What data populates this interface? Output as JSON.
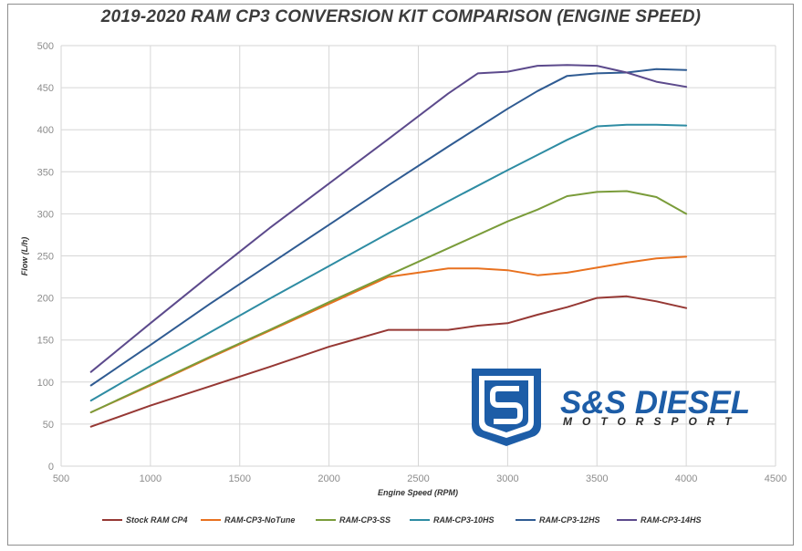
{
  "chart_data": {
    "type": "line",
    "title": "2019-2020 RAM CP3 CONVERSION KIT COMPARISON (ENGINE SPEED)",
    "xlabel": "Engine Speed (RPM)",
    "ylabel": "Flow (L/h)",
    "xlim": [
      500,
      4500
    ],
    "ylim": [
      0,
      500
    ],
    "xticks": [
      500,
      1000,
      1500,
      2000,
      2500,
      3000,
      3500,
      4000,
      4500
    ],
    "yticks": [
      0,
      50,
      100,
      150,
      200,
      250,
      300,
      350,
      400,
      450,
      500
    ],
    "grid": true,
    "legend_position": "bottom",
    "series": [
      {
        "name": "Stock RAM CP4",
        "color": "#963834",
        "x": [
          667,
          1000,
          1333,
          1667,
          2000,
          2333,
          2667,
          2833,
          3000,
          3167,
          3333,
          3500,
          3667,
          3833,
          4000
        ],
        "y": [
          47,
          72,
          95,
          118,
          142,
          162,
          162,
          167,
          170,
          180,
          189,
          200,
          202,
          196,
          188
        ]
      },
      {
        "name": "RAM-CP3-NoTune",
        "color": "#e8711f",
        "x": [
          667,
          1000,
          1333,
          1667,
          2000,
          2333,
          2500,
          2667,
          2833,
          3000,
          3167,
          3333,
          3500,
          3667,
          3833,
          4000
        ],
        "y": [
          64,
          96,
          129,
          161,
          193,
          225,
          230,
          235,
          235,
          233,
          227,
          230,
          236,
          242,
          247,
          249
        ]
      },
      {
        "name": "RAM-CP3-SS",
        "color": "#7a9c3a",
        "x": [
          667,
          1000,
          1333,
          1667,
          2000,
          2333,
          2667,
          3000,
          3167,
          3333,
          3500,
          3667,
          3833,
          4000
        ],
        "y": [
          64,
          97,
          130,
          162,
          195,
          227,
          259,
          291,
          305,
          321,
          326,
          327,
          320,
          300
        ]
      },
      {
        "name": "RAM-CP3-10HS",
        "color": "#2e8ca3",
        "x": [
          667,
          1000,
          1333,
          1667,
          2000,
          2333,
          2667,
          3000,
          3167,
          3333,
          3500,
          3667,
          3833,
          4000
        ],
        "y": [
          78,
          119,
          159,
          199,
          238,
          277,
          315,
          352,
          370,
          388,
          404,
          406,
          406,
          405
        ]
      },
      {
        "name": "RAM-CP3-12HS",
        "color": "#2f5b92",
        "x": [
          667,
          1000,
          1333,
          1667,
          2000,
          2333,
          2667,
          3000,
          3167,
          3333,
          3500,
          3667,
          3833,
          4000
        ],
        "y": [
          96,
          144,
          193,
          240,
          287,
          334,
          380,
          425,
          446,
          464,
          467,
          468,
          472,
          471
        ]
      },
      {
        "name": "RAM-CP3-14HS",
        "color": "#5c4a8c",
        "x": [
          667,
          1000,
          1333,
          1667,
          2000,
          2333,
          2667,
          2833,
          3000,
          3167,
          3333,
          3500,
          3667,
          3833,
          4000
        ],
        "y": [
          112,
          170,
          227,
          283,
          336,
          389,
          443,
          467,
          469,
          476,
          477,
          476,
          468,
          457,
          451
        ]
      }
    ]
  },
  "logo": {
    "title": "S&S DIESEL",
    "subtitle": "MOTORSPORT",
    "primary_color": "#1d5da7",
    "icon": "shield-s-logo-icon"
  }
}
